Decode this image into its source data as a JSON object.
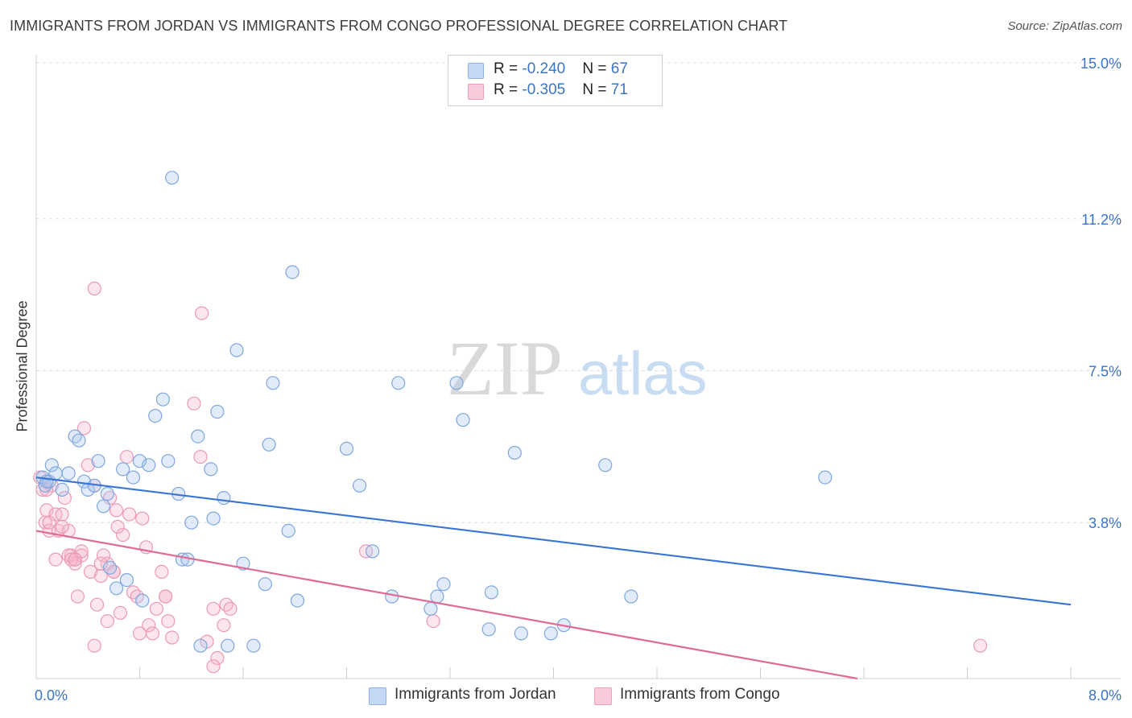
{
  "title": "IMMIGRANTS FROM JORDAN VS IMMIGRANTS FROM CONGO PROFESSIONAL DEGREE CORRELATION CHART",
  "source": "Source: ZipAtlas.com",
  "watermark": {
    "zip": "ZIP",
    "atlas": "atlas"
  },
  "legend": {
    "rows": [
      {
        "r_label": "R = ",
        "r_value": "-0.240",
        "n_label": "N = ",
        "n_value": "67",
        "color": "#a9c7ee"
      },
      {
        "r_label": "R = ",
        "r_value": "-0.305",
        "n_label": "N = ",
        "n_value": "71",
        "color": "#f5b5ca"
      }
    ]
  },
  "bottom_legend": {
    "jordan": "Immigrants from Jordan",
    "congo": "Immigrants from Congo"
  },
  "chart_data": {
    "type": "scatter",
    "title": "IMMIGRANTS FROM JORDAN VS IMMIGRANTS FROM CONGO PROFESSIONAL DEGREE CORRELATION CHART",
    "xlabel": "",
    "ylabel": "Professional Degree",
    "xlim": [
      0,
      8.0
    ],
    "ylim": [
      0,
      15.0
    ],
    "x_tick_labels": [
      "0.0%",
      "8.0%"
    ],
    "y_ticks": [
      3.8,
      7.5,
      11.2,
      15.0
    ],
    "y_tick_labels": [
      "3.8%",
      "7.5%",
      "11.2%",
      "15.0%"
    ],
    "grid": "horizontal dashed",
    "legend_position": "top-center",
    "colors": {
      "jordan": "#3a74d4",
      "congo": "#e06a96"
    },
    "series": [
      {
        "name": "Immigrants from Jordan",
        "color": "#3a74d4",
        "trend": {
          "x": [
            0.0,
            8.0
          ],
          "y": [
            4.9,
            1.8
          ]
        },
        "points": [
          [
            0.05,
            4.9
          ],
          [
            0.07,
            4.7
          ],
          [
            0.1,
            4.8
          ],
          [
            0.12,
            5.2
          ],
          [
            0.15,
            5.0
          ],
          [
            0.2,
            4.6
          ],
          [
            0.25,
            5.0
          ],
          [
            0.3,
            5.9
          ],
          [
            0.33,
            5.8
          ],
          [
            0.37,
            4.8
          ],
          [
            0.4,
            4.6
          ],
          [
            0.45,
            4.7
          ],
          [
            0.48,
            5.3
          ],
          [
            0.52,
            4.2
          ],
          [
            0.55,
            4.5
          ],
          [
            0.57,
            2.7
          ],
          [
            0.62,
            2.2
          ],
          [
            0.67,
            5.1
          ],
          [
            0.7,
            2.4
          ],
          [
            0.75,
            4.9
          ],
          [
            0.8,
            5.3
          ],
          [
            0.82,
            1.9
          ],
          [
            0.87,
            5.2
          ],
          [
            0.92,
            6.4
          ],
          [
            0.98,
            6.8
          ],
          [
            1.02,
            5.3
          ],
          [
            1.05,
            12.2
          ],
          [
            1.1,
            4.5
          ],
          [
            1.13,
            2.9
          ],
          [
            1.17,
            2.9
          ],
          [
            1.2,
            3.8
          ],
          [
            1.25,
            5.9
          ],
          [
            1.27,
            0.8
          ],
          [
            1.35,
            5.1
          ],
          [
            1.37,
            3.9
          ],
          [
            1.4,
            6.5
          ],
          [
            1.45,
            4.4
          ],
          [
            1.48,
            0.8
          ],
          [
            1.55,
            8.0
          ],
          [
            1.6,
            2.8
          ],
          [
            1.68,
            0.8
          ],
          [
            1.77,
            2.3
          ],
          [
            1.8,
            5.7
          ],
          [
            1.83,
            7.2
          ],
          [
            1.95,
            3.6
          ],
          [
            1.98,
            9.9
          ],
          [
            2.02,
            1.9
          ],
          [
            2.4,
            5.6
          ],
          [
            2.5,
            4.7
          ],
          [
            2.6,
            3.1
          ],
          [
            2.75,
            2.0
          ],
          [
            2.8,
            7.2
          ],
          [
            3.05,
            1.7
          ],
          [
            3.1,
            2.0
          ],
          [
            3.15,
            2.3
          ],
          [
            3.25,
            7.2
          ],
          [
            3.3,
            6.3
          ],
          [
            3.5,
            1.2
          ],
          [
            3.52,
            2.1
          ],
          [
            3.7,
            5.5
          ],
          [
            3.75,
            1.1
          ],
          [
            3.98,
            1.1
          ],
          [
            4.08,
            1.3
          ],
          [
            4.4,
            5.2
          ],
          [
            4.6,
            2.0
          ],
          [
            6.1,
            4.9
          ],
          [
            0.08,
            4.8
          ]
        ]
      },
      {
        "name": "Immigrants from Congo",
        "color": "#e06a96",
        "trend": {
          "x": [
            0.0,
            6.35
          ],
          "y": [
            3.6,
            0.0
          ]
        },
        "points": [
          [
            0.03,
            4.9
          ],
          [
            0.05,
            4.6
          ],
          [
            0.07,
            3.8
          ],
          [
            0.08,
            4.1
          ],
          [
            0.1,
            3.6
          ],
          [
            0.12,
            4.7
          ],
          [
            0.15,
            4.0
          ],
          [
            0.17,
            3.6
          ],
          [
            0.2,
            4.0
          ],
          [
            0.22,
            4.4
          ],
          [
            0.25,
            3.6
          ],
          [
            0.27,
            3.0
          ],
          [
            0.3,
            2.9
          ],
          [
            0.32,
            2.0
          ],
          [
            0.35,
            3.0
          ],
          [
            0.37,
            6.1
          ],
          [
            0.4,
            5.2
          ],
          [
            0.42,
            2.6
          ],
          [
            0.45,
            4.7
          ],
          [
            0.47,
            1.8
          ],
          [
            0.5,
            2.5
          ],
          [
            0.52,
            3.0
          ],
          [
            0.55,
            1.4
          ],
          [
            0.57,
            4.4
          ],
          [
            0.6,
            2.6
          ],
          [
            0.62,
            4.1
          ],
          [
            0.65,
            1.6
          ],
          [
            0.67,
            3.5
          ],
          [
            0.7,
            5.4
          ],
          [
            0.72,
            4.0
          ],
          [
            0.75,
            2.1
          ],
          [
            0.78,
            2.0
          ],
          [
            0.8,
            1.1
          ],
          [
            0.82,
            3.9
          ],
          [
            0.85,
            3.2
          ],
          [
            0.87,
            1.3
          ],
          [
            0.9,
            1.1
          ],
          [
            0.93,
            1.7
          ],
          [
            0.97,
            2.6
          ],
          [
            1.0,
            2.0
          ],
          [
            1.02,
            1.4
          ],
          [
            1.05,
            1.0
          ],
          [
            1.0,
            2.0
          ],
          [
            0.45,
            9.5
          ],
          [
            0.45,
            0.8
          ],
          [
            1.22,
            6.7
          ],
          [
            1.27,
            5.4
          ],
          [
            1.28,
            8.9
          ],
          [
            1.32,
            0.9
          ],
          [
            1.37,
            1.7
          ],
          [
            1.4,
            0.5
          ],
          [
            1.45,
            1.3
          ],
          [
            1.47,
            1.8
          ],
          [
            0.15,
            2.9
          ],
          [
            0.2,
            3.7
          ],
          [
            0.25,
            3.0
          ],
          [
            0.3,
            2.8
          ],
          [
            0.35,
            3.1
          ],
          [
            0.55,
            2.8
          ],
          [
            0.6,
            2.6
          ],
          [
            0.63,
            3.7
          ],
          [
            1.37,
            0.3
          ],
          [
            1.5,
            1.7
          ],
          [
            2.55,
            3.1
          ],
          [
            3.07,
            1.4
          ],
          [
            7.3,
            0.8
          ],
          [
            0.08,
            4.6
          ],
          [
            0.1,
            3.8
          ],
          [
            0.27,
            2.9
          ],
          [
            0.3,
            2.9
          ],
          [
            0.5,
            2.8
          ]
        ]
      }
    ]
  }
}
